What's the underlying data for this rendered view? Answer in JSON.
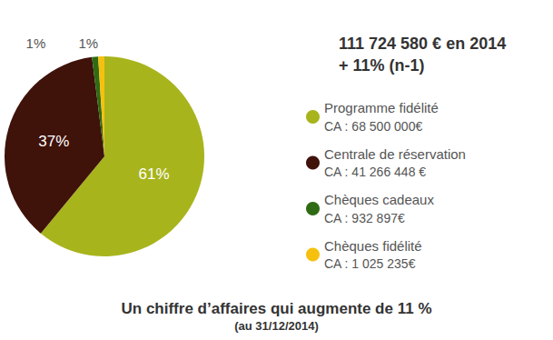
{
  "chart_data": {
    "type": "pie",
    "title": "111 724 580 € en 2014",
    "subtitle": "+ 11% (n-1)",
    "annotations": [
      "Un chiffre d’affaires qui augmente de 11 %",
      "(au 31/12/2014)"
    ],
    "categories": [
      "Programme fidélité",
      "Centrale de réservation",
      "Chèques cadeaux",
      "Chèques fidélité"
    ],
    "legend_details": [
      "CA : 68 500 000€",
      "CA : 41 266 448 €",
      "CA : 932 897€",
      "CA : 1 025 235€"
    ],
    "values": [
      61,
      37,
      1,
      1
    ],
    "value_labels": [
      "61%",
      "37%",
      "1%",
      "1%"
    ],
    "colors": [
      "#a8b41c",
      "#3f120a",
      "#2f6b14",
      "#f5c10e"
    ],
    "data_labels": true,
    "legend": "right"
  }
}
